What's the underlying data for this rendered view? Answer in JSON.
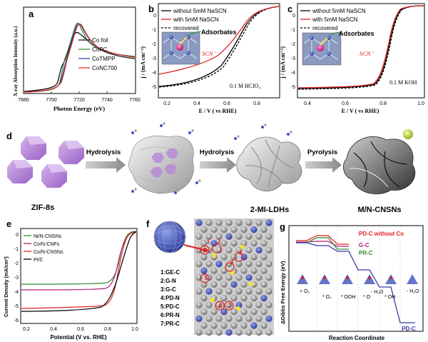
{
  "panels": {
    "a": {
      "letter": "a",
      "ylabel": "X-ray Absorption Intensity (a.u.)",
      "xlabel": "Photon Energy (eV)",
      "xticks": [
        "7680",
        "7700",
        "7720",
        "7740",
        "7760"
      ],
      "legend": [
        {
          "label": "Co foil",
          "color": "#000000"
        },
        {
          "label": "CoPC",
          "color": "#2e8b2e"
        },
        {
          "label": "CoTMPP",
          "color": "#1f3c9c"
        },
        {
          "label": "CoNC700",
          "color": "#e0201f"
        }
      ]
    },
    "b": {
      "letter": "b",
      "ylabel": "j / (mA cm⁻²)",
      "xlabel": "E / V ( vs RHE)",
      "xticks": [
        "0.2",
        "0.4",
        "0.6",
        "0.8"
      ],
      "yticks": [
        "0",
        "-1",
        "-2",
        "-3",
        "-4",
        "-5"
      ],
      "legend": [
        {
          "label": "without 5mM NaSCN",
          "color": "#000000"
        },
        {
          "label": "with 5mM NaSCN",
          "color": "#e0201f"
        },
        {
          "label": "recovered",
          "color": "#000000"
        }
      ],
      "inset_adsorbates": "Adsorbates",
      "inset_scn": "SCN⁻",
      "electrolyte": "0.1 M HClO₄"
    },
    "c": {
      "letter": "c",
      "ylabel": "j / (mA cm⁻²)",
      "xlabel": "E / V ( vs RHE)",
      "xticks": [
        "0.4",
        "0.6",
        "0.8",
        "1.0"
      ],
      "yticks": [
        "0",
        "-1",
        "-2",
        "-3",
        "-4",
        "-5"
      ],
      "legend": [
        {
          "label": "without 5mM NaSCN",
          "color": "#000000"
        },
        {
          "label": "with 5mM NaSCN",
          "color": "#e0201f"
        },
        {
          "label": "recovered",
          "color": "#000000"
        }
      ],
      "inset_adsorbates": "Adsorbates",
      "inset_scn": "SCN⁻",
      "electrolyte": "0.1 M KOH"
    },
    "d": {
      "letter": "d",
      "step1": "Hydrolysis",
      "step2": "Hydrolysis",
      "step3": "Pyrolysis",
      "label_zif": "ZIF-8s",
      "label_ldh": "2-MI-LDHs",
      "label_cnsn": "M/N-CNSNs"
    },
    "e": {
      "letter": "e",
      "ylabel": "Current Density (mA/cm²)",
      "xlabel": "Potential (V vs. RHE)",
      "xticks": [
        "0.2",
        "0.4",
        "0.6",
        "0.8",
        "1.0"
      ],
      "yticks": [
        "0",
        "-1",
        "-2",
        "-3",
        "-4",
        "-5",
        "-6"
      ],
      "legend": [
        {
          "label": "Ni/N-CNSNs",
          "color": "#2e8b2e"
        },
        {
          "label": "Co/N-CNFs",
          "color": "#b0207a"
        },
        {
          "label": "Co/N-CNSNs",
          "color": "#e0201f"
        },
        {
          "label": "Pt/C",
          "color": "#000000"
        }
      ]
    },
    "f": {
      "letter": "f",
      "sites": [
        "1:GE-C",
        "2:G-N",
        "3:G-C",
        "4:PD-N",
        "5:PD-C",
        "6:PR-N",
        "7:PR-C"
      ],
      "markers": [
        "1",
        "2",
        "3",
        "4",
        "5",
        "6",
        "7"
      ]
    },
    "g": {
      "letter": "g",
      "ylabel": "ΔGibbs Free Energy (eV)",
      "xlabel": "Reaction Coordinate",
      "series_labels": [
        {
          "label": "PD-C without Co",
          "color": "#e0201f"
        },
        {
          "label": "G-C",
          "color": "#b0207a"
        },
        {
          "label": "PR-C",
          "color": "#2e8b2e"
        },
        {
          "label": "PD-C",
          "color": "#3a3aa8"
        }
      ],
      "steps": [
        "* O₂",
        "* OOH",
        "* O",
        "* OH"
      ],
      "h2o_labels": [
        "- H₂O",
        "- H₂O"
      ],
      "o2_label": "+ O₂"
    }
  }
}
